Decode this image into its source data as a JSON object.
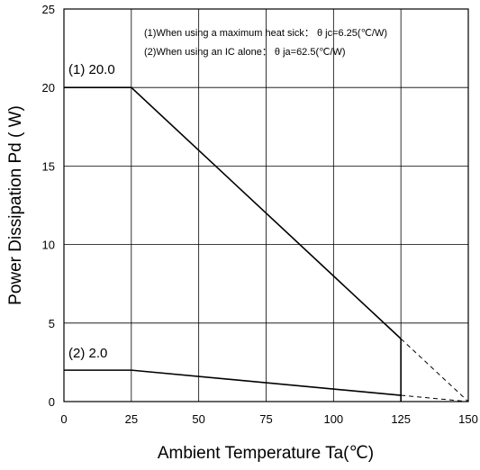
{
  "chart_data": {
    "type": "line",
    "title": "",
    "xlabel": "Ambient Temperature Ta(℃)",
    "ylabel": "Power Dissipation Pd ( W)",
    "xlim": [
      0,
      150
    ],
    "ylim": [
      0,
      25
    ],
    "x_ticks": [
      "0",
      "25",
      "50",
      "75",
      "100",
      "125",
      "150"
    ],
    "y_ticks": [
      "0",
      "5",
      "10",
      "15",
      "20",
      "25"
    ],
    "grid": true,
    "annotations": [
      "(1)When using a maximum heat sick： θ jc=6.25(℃/W)",
      "(2)When using an IC alone： θ ja=62.5(℃/W)"
    ],
    "series": [
      {
        "name": "(1) 20.0",
        "x": [
          0,
          25,
          125
        ],
        "y": [
          20,
          20,
          4
        ],
        "extension_x": [
          125,
          150
        ],
        "extension_y": [
          4,
          0
        ]
      },
      {
        "name": "(2) 2.0",
        "x": [
          0,
          25,
          125
        ],
        "y": [
          2,
          2,
          0.4
        ],
        "extension_x": [
          125,
          150
        ],
        "extension_y": [
          0.4,
          0
        ]
      }
    ],
    "cutoff_x": 125,
    "colors": {
      "line": "#000000",
      "grid": "#000000",
      "background": "#ffffff"
    }
  }
}
